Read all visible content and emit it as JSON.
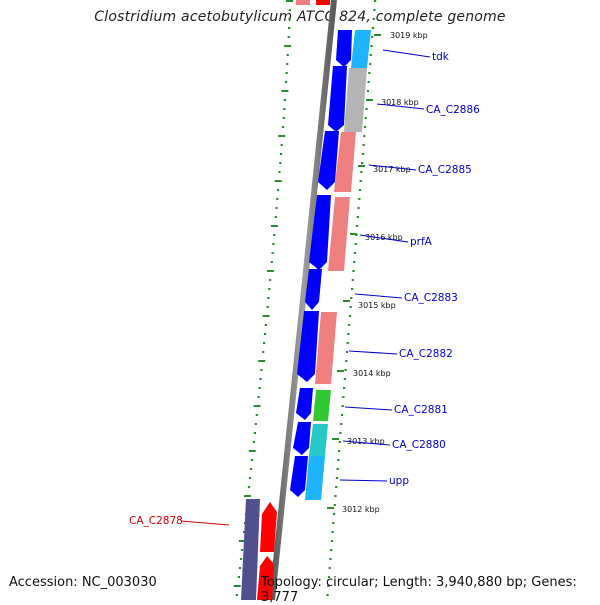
{
  "header": {
    "title": "Clostridium acetobutylicum ATCC 824, complete genome"
  },
  "footer": {
    "accession": "Accession: NC_003030",
    "topology": "Topology: circular; Length: 3,940,880 bp; Genes: 3,777"
  },
  "colors": {
    "cds_forward": "#0000ff",
    "backbone": "#808080",
    "label_blue": "#0000cc",
    "label_red": "#cc0000",
    "gc_dots": "#2e8b2e",
    "cog_gray": "#b4b4b4",
    "cog_pink": "#f08080",
    "cog_lightblue": "#1eb4ff",
    "cog_green": "#32c832",
    "cog_cyan": "#28c8c8",
    "cds_reverse": "#ff0000",
    "cds_reverse_slate": "#50508c"
  },
  "kbp_ticks": [
    "3019 kbp",
    "3018 kbp",
    "3017 kbp",
    "3016 kbp",
    "3015 kbp",
    "3014 kbp",
    "3013 kbp",
    "3012 kbp"
  ],
  "gene_labels": [
    "tdk",
    "CA_C2886",
    "CA_C2885",
    "prfA",
    "CA_C2883",
    "CA_C2882",
    "CA_C2881",
    "CA_C2880",
    "upp",
    "CA_C2878"
  ]
}
